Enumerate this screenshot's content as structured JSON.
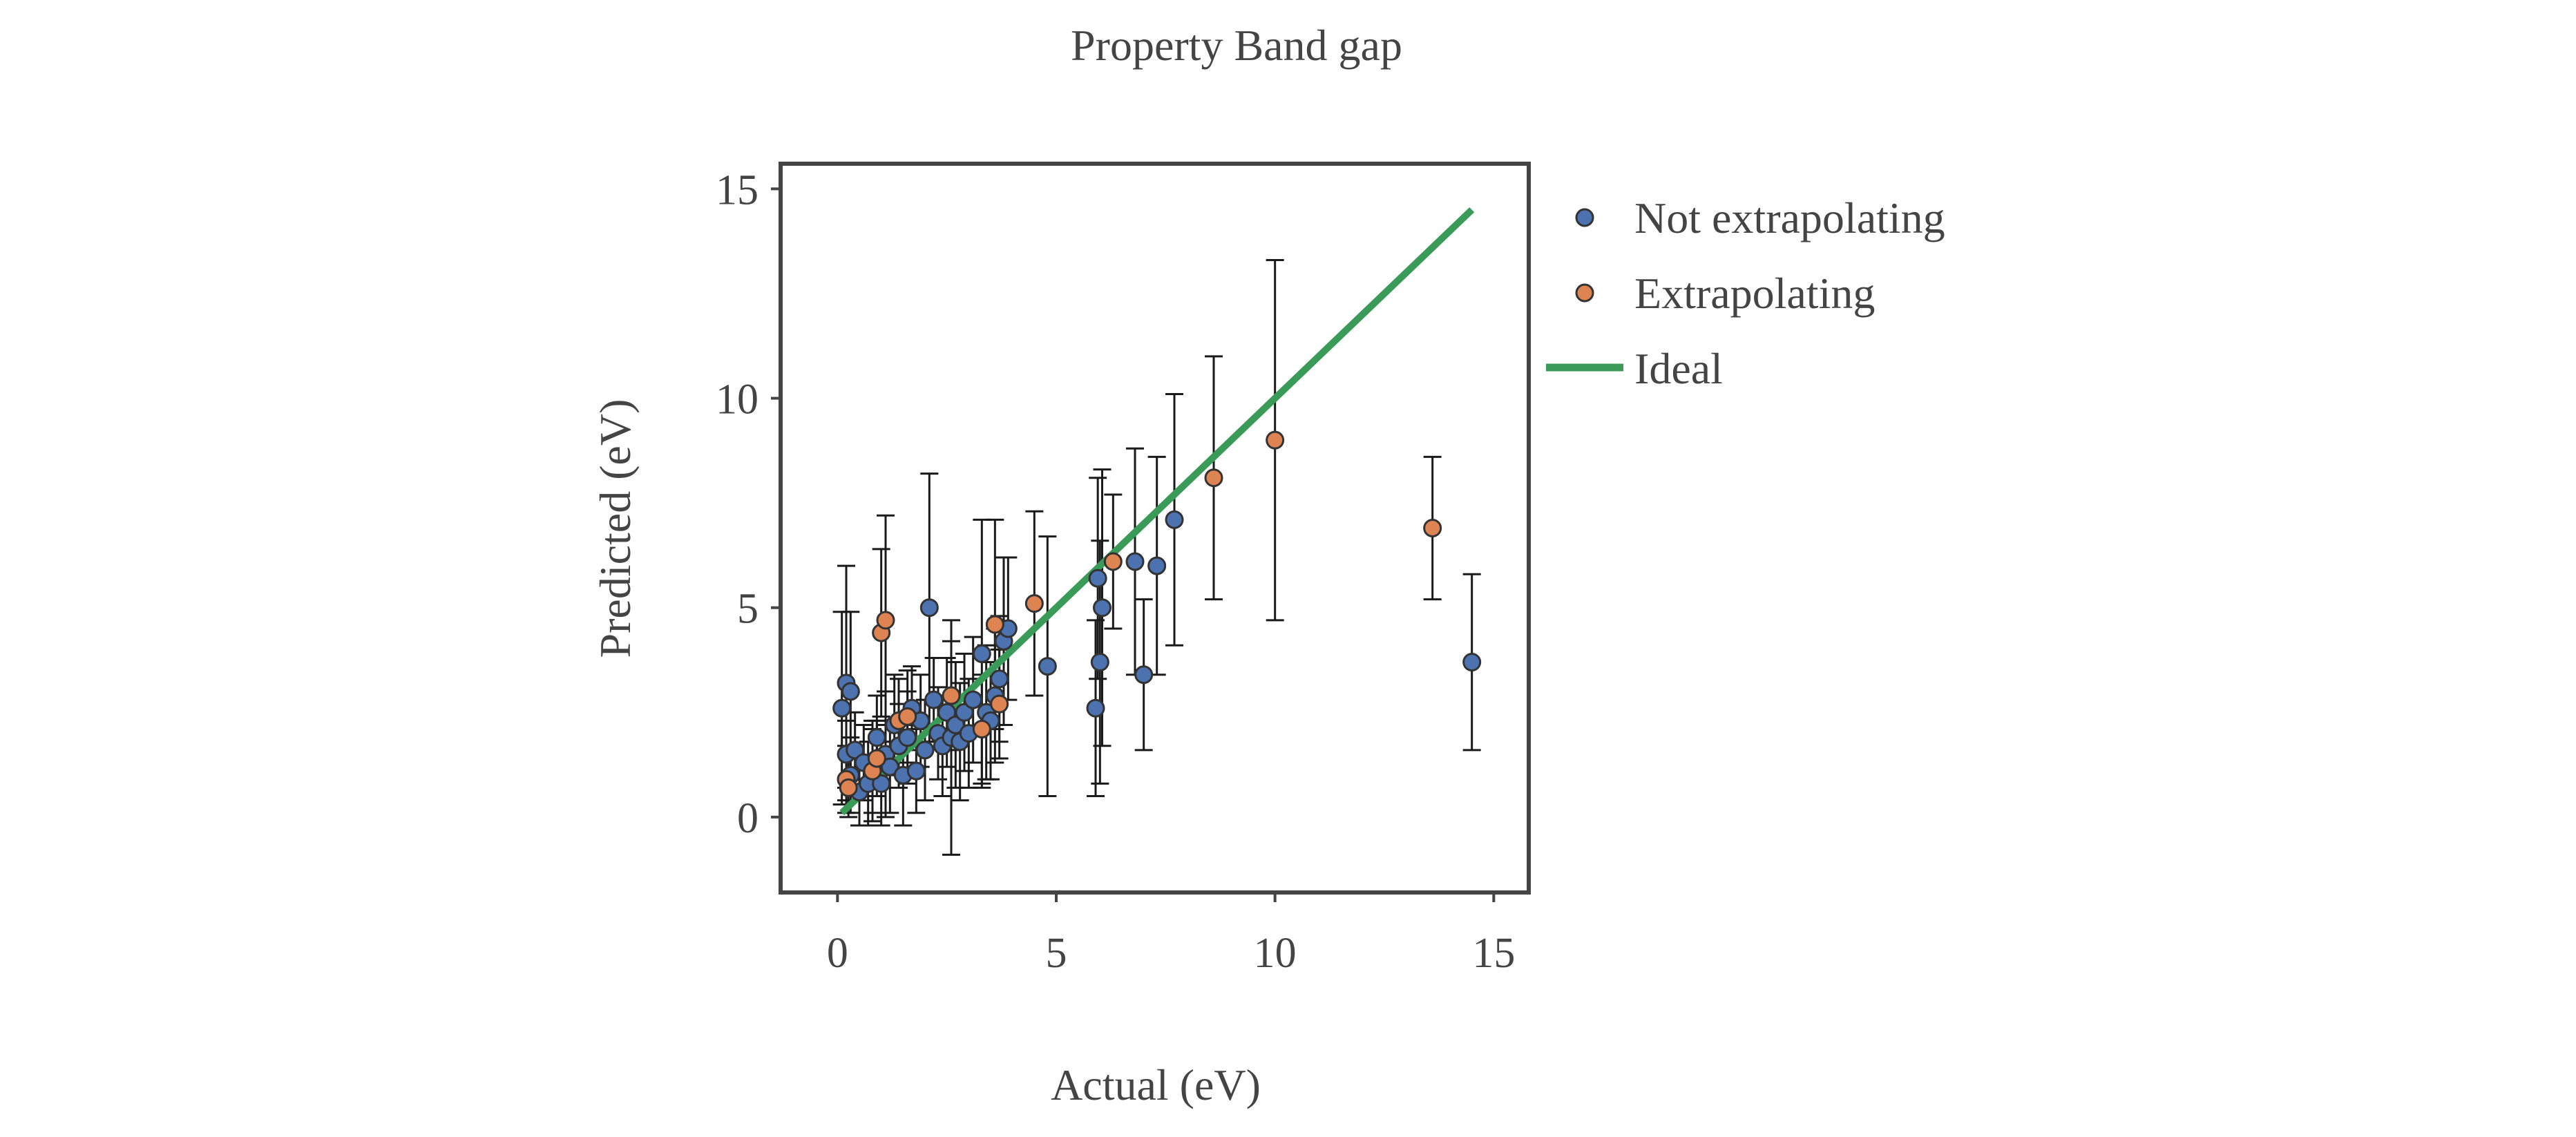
{
  "chart_data": {
    "type": "scatter",
    "title": "Property Band gap",
    "xlabel": "Actual (eV)",
    "ylabel": "Predicted (eV)",
    "xlim": [
      -1.3,
      15.8
    ],
    "ylim": [
      -1.8,
      15.6
    ],
    "xticks": [
      0,
      5,
      10,
      15
    ],
    "yticks": [
      0,
      5,
      10,
      15
    ],
    "grid": false,
    "legend_position": "outside-right-top",
    "colors": {
      "not_extrapolating": "#4c72b0",
      "extrapolating": "#dd8452",
      "ideal": "#3a9b58",
      "errorbar": "#1a1a1a",
      "axes": "#444444"
    },
    "series": [
      {
        "name": "Not extrapolating",
        "points": [
          {
            "x": 0.1,
            "y": 2.6,
            "err": 2.3
          },
          {
            "x": 0.2,
            "y": 3.2,
            "err": 2.8
          },
          {
            "x": 0.3,
            "y": 3.0,
            "err": 1.9
          },
          {
            "x": 0.2,
            "y": 1.5,
            "err": 0.8
          },
          {
            "x": 0.4,
            "y": 1.6,
            "err": 0.9
          },
          {
            "x": 0.3,
            "y": 1.0,
            "err": 0.9
          },
          {
            "x": 0.5,
            "y": 0.6,
            "err": 0.8
          },
          {
            "x": 0.6,
            "y": 1.3,
            "err": 0.9
          },
          {
            "x": 0.7,
            "y": 0.8,
            "err": 1.0
          },
          {
            "x": 0.8,
            "y": 1.1,
            "err": 1.2
          },
          {
            "x": 0.9,
            "y": 1.9,
            "err": 1.0
          },
          {
            "x": 1.0,
            "y": 0.8,
            "err": 1.0
          },
          {
            "x": 1.1,
            "y": 1.5,
            "err": 1.5
          },
          {
            "x": 1.2,
            "y": 1.2,
            "err": 1.1
          },
          {
            "x": 1.3,
            "y": 2.2,
            "err": 1.2
          },
          {
            "x": 1.4,
            "y": 1.7,
            "err": 1.0
          },
          {
            "x": 1.5,
            "y": 1.0,
            "err": 1.2
          },
          {
            "x": 1.6,
            "y": 1.9,
            "err": 1.1
          },
          {
            "x": 1.7,
            "y": 2.6,
            "err": 1.0
          },
          {
            "x": 1.8,
            "y": 1.1,
            "err": 1.0
          },
          {
            "x": 1.9,
            "y": 2.3,
            "err": 1.1
          },
          {
            "x": 2.0,
            "y": 1.6,
            "err": 1.2
          },
          {
            "x": 2.1,
            "y": 5.0,
            "err": 3.2
          },
          {
            "x": 2.2,
            "y": 2.8,
            "err": 1.0
          },
          {
            "x": 2.3,
            "y": 2.0,
            "err": 1.1
          },
          {
            "x": 2.4,
            "y": 1.7,
            "err": 1.2
          },
          {
            "x": 2.5,
            "y": 2.5,
            "err": 1.3
          },
          {
            "x": 2.6,
            "y": 1.9,
            "err": 2.8
          },
          {
            "x": 2.7,
            "y": 2.2,
            "err": 1.5
          },
          {
            "x": 2.8,
            "y": 1.8,
            "err": 1.4
          },
          {
            "x": 2.9,
            "y": 2.5,
            "err": 1.4
          },
          {
            "x": 3.0,
            "y": 2.0,
            "err": 1.3
          },
          {
            "x": 3.1,
            "y": 2.8,
            "err": 1.5
          },
          {
            "x": 3.3,
            "y": 3.9,
            "err": 3.2
          },
          {
            "x": 3.4,
            "y": 2.5,
            "err": 1.6
          },
          {
            "x": 3.5,
            "y": 2.3,
            "err": 1.4
          },
          {
            "x": 3.6,
            "y": 2.9,
            "err": 1.6
          },
          {
            "x": 3.8,
            "y": 4.2,
            "err": 2.0
          },
          {
            "x": 3.9,
            "y": 4.5,
            "err": 1.7
          },
          {
            "x": 3.7,
            "y": 3.3,
            "err": 1.5
          },
          {
            "x": 4.8,
            "y": 3.6,
            "err": 3.1
          },
          {
            "x": 5.9,
            "y": 2.6,
            "err": 2.1
          },
          {
            "x": 5.95,
            "y": 5.7,
            "err": 2.4
          },
          {
            "x": 6.0,
            "y": 3.7,
            "err": 2.9
          },
          {
            "x": 6.05,
            "y": 5.0,
            "err": 3.3
          },
          {
            "x": 6.8,
            "y": 6.1,
            "err": 2.7
          },
          {
            "x": 7.0,
            "y": 3.4,
            "err": 1.8
          },
          {
            "x": 7.3,
            "y": 6.0,
            "err": 2.6
          },
          {
            "x": 7.7,
            "y": 7.1,
            "err": 3.0
          },
          {
            "x": 14.5,
            "y": 3.7,
            "err": 2.1
          }
        ]
      },
      {
        "name": "Extrapolating",
        "points": [
          {
            "x": 0.2,
            "y": 0.9,
            "err": 0.8
          },
          {
            "x": 0.25,
            "y": 0.7,
            "err": 0.7
          },
          {
            "x": 0.8,
            "y": 1.1,
            "err": 1.0
          },
          {
            "x": 0.9,
            "y": 1.4,
            "err": 0.9
          },
          {
            "x": 1.0,
            "y": 4.4,
            "err": 2.0
          },
          {
            "x": 1.1,
            "y": 4.7,
            "err": 2.5
          },
          {
            "x": 1.4,
            "y": 2.3,
            "err": 1.0
          },
          {
            "x": 1.6,
            "y": 2.4,
            "err": 1.1
          },
          {
            "x": 2.6,
            "y": 2.9,
            "err": 1.3
          },
          {
            "x": 3.3,
            "y": 2.1,
            "err": 1.3
          },
          {
            "x": 3.6,
            "y": 4.6,
            "err": 2.5
          },
          {
            "x": 3.7,
            "y": 2.7,
            "err": 1.3
          },
          {
            "x": 4.5,
            "y": 5.1,
            "err": 2.2
          },
          {
            "x": 6.3,
            "y": 6.1,
            "err": 1.6
          },
          {
            "x": 8.6,
            "y": 8.1,
            "err": 2.9
          },
          {
            "x": 10.0,
            "y": 9.0,
            "err": 4.3
          },
          {
            "x": 13.6,
            "y": 6.9,
            "err": 1.7
          }
        ]
      }
    ],
    "ideal_line": {
      "name": "Ideal",
      "x": [
        0.1,
        14.5
      ],
      "y": [
        0.1,
        14.5
      ]
    }
  }
}
